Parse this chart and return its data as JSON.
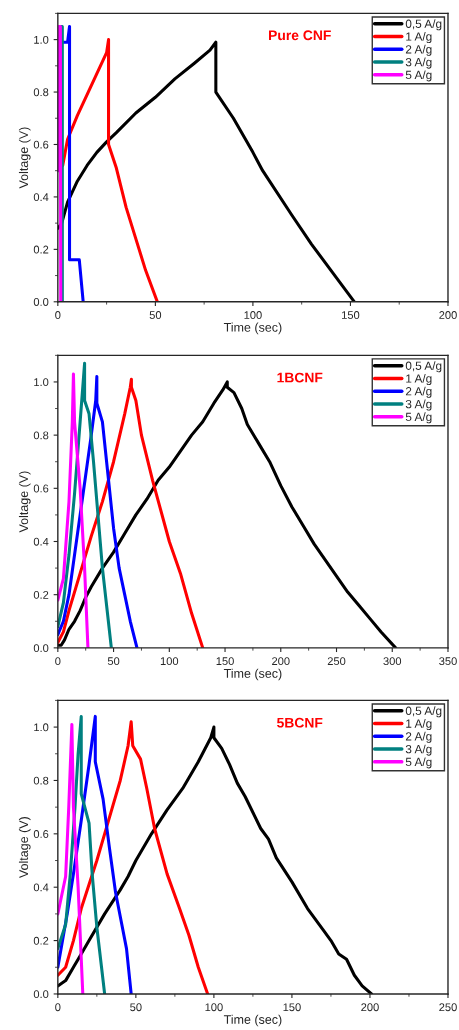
{
  "chart_data": [
    {
      "type": "line",
      "title": "Pure CNF",
      "xlabel": "Time (sec)",
      "ylabel": "Voltage (V)",
      "xlim": [
        0,
        200
      ],
      "xticks": [
        0,
        50,
        100,
        150,
        200
      ],
      "ylim": [
        0,
        1.1
      ],
      "yticks": [
        {
          "value": 0,
          "label": "0.0"
        },
        {
          "value": 0.2,
          "label": "0.2"
        },
        {
          "value": 0.4,
          "label": "0.4"
        },
        {
          "value": 0.6,
          "label": "0.6"
        },
        {
          "value": 0.8,
          "label": "0.8"
        },
        {
          "value": 1,
          "label": "1.0"
        }
      ],
      "legend": "top right",
      "grid": false,
      "line_style": "solid",
      "series": [
        {
          "name": "0,5 A/g",
          "color": "#000000",
          "x": [
            0,
            2,
            5,
            10,
            15,
            20,
            25,
            30,
            40,
            50,
            60,
            70,
            78,
            81,
            81,
            90,
            100,
            105,
            120,
            130,
            140,
            152
          ],
          "values": [
            0.28,
            0.3,
            0.38,
            0.46,
            0.52,
            0.57,
            0.61,
            0.645,
            0.72,
            0.78,
            0.85,
            0.91,
            0.96,
            0.99,
            0.8,
            0.7,
            0.57,
            0.5,
            0.33,
            0.22,
            0.12,
            0.0
          ]
        },
        {
          "name": "1 A/g",
          "color": "#ff0000",
          "x": [
            2.5,
            5,
            10,
            15,
            20,
            25,
            26,
            26,
            30,
            35,
            40,
            45,
            51
          ],
          "values": [
            0.52,
            0.62,
            0.71,
            0.79,
            0.87,
            0.95,
            1.0,
            0.6,
            0.51,
            0.36,
            0.24,
            0.12,
            0.0
          ]
        },
        {
          "name": "2 A/g",
          "color": "#0000ff",
          "x": [
            1,
            5,
            6,
            6,
            11,
            13
          ],
          "values": [
            0.99,
            0.99,
            1.05,
            0.16,
            0.16,
            0.0
          ]
        },
        {
          "name": "3 A/g",
          "color": "#008080",
          "x": [
            0,
            1,
            2.3,
            2.3
          ],
          "values": [
            0.5,
            1.05,
            1.05,
            0.0
          ]
        },
        {
          "name": "5 A/g",
          "color": "#ff00ff",
          "x": [
            0,
            0.5,
            1.3,
            1.5
          ],
          "values": [
            0.5,
            1.05,
            1.05,
            0.0
          ]
        }
      ]
    },
    {
      "type": "line",
      "title": "1BCNF",
      "xlabel": "Time (sec)",
      "ylabel": "Voltage (V)",
      "xlim": [
        0,
        350
      ],
      "xticks": [
        0,
        50,
        100,
        150,
        200,
        250,
        300,
        350
      ],
      "ylim": [
        0,
        1.1
      ],
      "yticks": [
        {
          "value": 0,
          "label": "0.0"
        },
        {
          "value": 0.2,
          "label": "0.2"
        },
        {
          "value": 0.4,
          "label": "0.4"
        },
        {
          "value": 0.6,
          "label": "0.6"
        },
        {
          "value": 0.8,
          "label": "0.8"
        },
        {
          "value": 1,
          "label": "1.0"
        }
      ],
      "legend": "top right",
      "grid": false,
      "line_style": "solid",
      "series": [
        {
          "name": "0,5 A/g",
          "color": "#000000",
          "x": [
            0,
            3,
            6,
            10,
            15,
            20,
            25,
            30,
            40,
            50,
            60,
            70,
            80,
            90,
            100,
            110,
            120,
            130,
            140,
            148,
            152,
            152,
            158,
            165,
            170,
            180,
            190,
            200,
            210,
            220,
            230,
            240,
            250,
            260,
            270,
            280,
            290,
            303
          ],
          "values": [
            0.01,
            0.01,
            0.03,
            0.07,
            0.1,
            0.14,
            0.19,
            0.23,
            0.3,
            0.36,
            0.43,
            0.5,
            0.56,
            0.63,
            0.68,
            0.74,
            0.8,
            0.85,
            0.92,
            0.97,
            1.0,
            0.98,
            0.96,
            0.9,
            0.84,
            0.77,
            0.7,
            0.61,
            0.53,
            0.46,
            0.39,
            0.33,
            0.27,
            0.21,
            0.16,
            0.11,
            0.06,
            0.0
          ]
        },
        {
          "name": "1 A/g",
          "color": "#ff0000",
          "x": [
            0,
            5,
            10,
            20,
            30,
            40,
            50,
            60,
            65,
            66,
            66,
            70,
            75,
            85,
            100,
            110,
            120,
            130
          ],
          "values": [
            0.02,
            0.06,
            0.14,
            0.28,
            0.42,
            0.55,
            0.7,
            0.88,
            0.98,
            1.01,
            0.98,
            0.93,
            0.8,
            0.63,
            0.4,
            0.28,
            0.13,
            0.0
          ]
        },
        {
          "name": "2 A/g",
          "color": "#0000ff",
          "x": [
            0,
            5,
            10,
            15,
            20,
            25,
            30,
            34,
            35,
            35,
            40,
            45,
            50,
            55,
            60,
            65,
            71
          ],
          "values": [
            0.05,
            0.1,
            0.2,
            0.35,
            0.5,
            0.65,
            0.8,
            0.93,
            1.02,
            0.92,
            0.85,
            0.65,
            0.45,
            0.3,
            0.2,
            0.1,
            0.0
          ]
        },
        {
          "name": "3 A/g",
          "color": "#008080",
          "x": [
            0,
            5,
            10,
            15,
            20,
            24,
            24,
            28,
            32,
            36,
            40,
            44,
            48
          ],
          "values": [
            0.08,
            0.17,
            0.35,
            0.58,
            0.85,
            1.07,
            0.93,
            0.88,
            0.7,
            0.5,
            0.3,
            0.15,
            0.0
          ]
        },
        {
          "name": "5 A/g",
          "color": "#ff00ff",
          "x": [
            0,
            5,
            10,
            13,
            14,
            15,
            20,
            24,
            27
          ],
          "values": [
            0.18,
            0.26,
            0.55,
            0.85,
            1.03,
            0.85,
            0.6,
            0.3,
            0.0
          ]
        }
      ]
    },
    {
      "type": "line",
      "title": "5BCNF",
      "xlabel": "Time (sec)",
      "ylabel": "Voltage (V)",
      "xlim": [
        0,
        250
      ],
      "xticks": [
        0,
        50,
        100,
        150,
        200,
        250
      ],
      "ylim": [
        0,
        1.1
      ],
      "yticks": [
        {
          "value": 0,
          "label": "0.0"
        },
        {
          "value": 0.2,
          "label": "0.2"
        },
        {
          "value": 0.4,
          "label": "0.4"
        },
        {
          "value": 0.6,
          "label": "0.6"
        },
        {
          "value": 0.8,
          "label": "0.8"
        },
        {
          "value": 1,
          "label": "1.0"
        }
      ],
      "legend": "top right",
      "grid": false,
      "line_style": "solid",
      "series": [
        {
          "name": "0,5 A/g",
          "color": "#000000",
          "x": [
            0,
            5,
            10,
            15,
            20,
            30,
            40,
            45,
            50,
            60,
            70,
            80,
            90,
            98,
            100,
            100,
            105,
            110,
            115,
            120,
            130,
            135,
            140,
            150,
            160,
            170,
            175,
            180,
            185,
            190,
            195,
            201
          ],
          "values": [
            0.03,
            0.05,
            0.1,
            0.15,
            0.2,
            0.3,
            0.39,
            0.44,
            0.5,
            0.6,
            0.69,
            0.77,
            0.87,
            0.96,
            1.0,
            0.96,
            0.92,
            0.86,
            0.79,
            0.74,
            0.62,
            0.58,
            0.51,
            0.42,
            0.32,
            0.24,
            0.2,
            0.15,
            0.13,
            0.07,
            0.03,
            0.0
          ]
        },
        {
          "name": "1 A/g",
          "color": "#ff0000",
          "x": [
            0,
            5,
            10,
            15,
            20,
            25,
            30,
            35,
            40,
            45,
            47,
            48,
            53,
            57,
            62,
            70,
            78,
            84,
            90,
            96
          ],
          "values": [
            0.07,
            0.1,
            0.2,
            0.32,
            0.41,
            0.5,
            0.6,
            0.7,
            0.8,
            0.93,
            1.02,
            0.93,
            0.88,
            0.77,
            0.62,
            0.45,
            0.32,
            0.22,
            0.1,
            0.0
          ]
        },
        {
          "name": "2 A/g",
          "color": "#0000ff",
          "x": [
            0,
            3,
            6,
            10,
            15,
            20,
            24,
            24,
            29,
            33,
            37,
            41,
            44,
            47
          ],
          "values": [
            0.1,
            0.2,
            0.3,
            0.45,
            0.65,
            0.86,
            1.04,
            0.87,
            0.73,
            0.55,
            0.38,
            0.26,
            0.17,
            0.0
          ]
        },
        {
          "name": "3 A/g",
          "color": "#008080",
          "x": [
            0,
            5,
            8,
            11,
            13,
            15,
            15,
            20,
            22,
            25,
            28,
            30
          ],
          "values": [
            0.17,
            0.26,
            0.45,
            0.7,
            0.9,
            1.04,
            0.75,
            0.64,
            0.45,
            0.25,
            0.1,
            0.0
          ]
        },
        {
          "name": "5 A/g",
          "color": "#ff00ff",
          "x": [
            0,
            5,
            7,
            9,
            10,
            13,
            16
          ],
          "values": [
            0.3,
            0.44,
            0.7,
            1.01,
            0.7,
            0.4,
            0.0
          ]
        }
      ]
    }
  ]
}
